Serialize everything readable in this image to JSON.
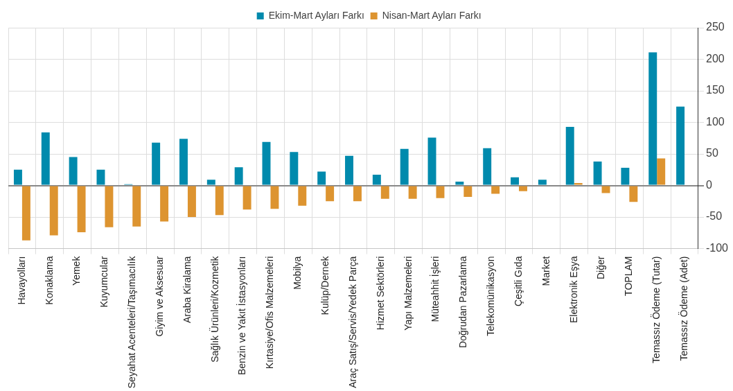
{
  "chart_data": {
    "type": "bar",
    "categories": [
      "Havayolları",
      "Konaklama",
      "Yemek",
      "Kuyumcular",
      "Seyahat Acenteleri/Taşımacılık",
      "Giyim ve Aksesuar",
      "Araba Kiralama",
      "Sağlık Ürünleri/Kozmetik",
      "Benzin ve Yakıt İstasyonları",
      "Kırtasiye/Ofis Malzemeleri",
      "Mobilya",
      "Kulüp/Dernek",
      "Araç Satış/Servis/Yedek Parça",
      "Hizmet Sektörleri",
      "Yapı Malzemeleri",
      "Müteahhit İşleri",
      "Doğrudan Pazarlama",
      "Telekomünikasyon",
      "Çeşitli Gıda",
      "Market",
      "Elektronik Eşya",
      "Diğer",
      "TOPLAM",
      "Temassız Ödeme (Tutar)",
      "Temassız Ödeme (Adet)"
    ],
    "series": [
      {
        "name": "Ekim-Mart Ayları Farkı",
        "color": "#008aad",
        "values": [
          25,
          84,
          45,
          25,
          2,
          68,
          74,
          9,
          29,
          69,
          53,
          22,
          47,
          17,
          58,
          76,
          6,
          59,
          13,
          9,
          93,
          38,
          28,
          211,
          125
        ]
      },
      {
        "name": "Nisan-Mart Ayları Farkı",
        "color": "#dd9430",
        "values": [
          -87,
          -79,
          -74,
          -66,
          -65,
          -57,
          -50,
          -47,
          -38,
          -37,
          -32,
          -25,
          -25,
          -21,
          -21,
          -20,
          -18,
          -13,
          -9,
          0,
          4,
          -12,
          -26,
          43,
          0
        ]
      }
    ],
    "ylim": [
      -100,
      250
    ],
    "yticks": [
      -100,
      -50,
      0,
      50,
      100,
      150,
      200,
      250
    ],
    "grid": true,
    "legend": "top"
  }
}
